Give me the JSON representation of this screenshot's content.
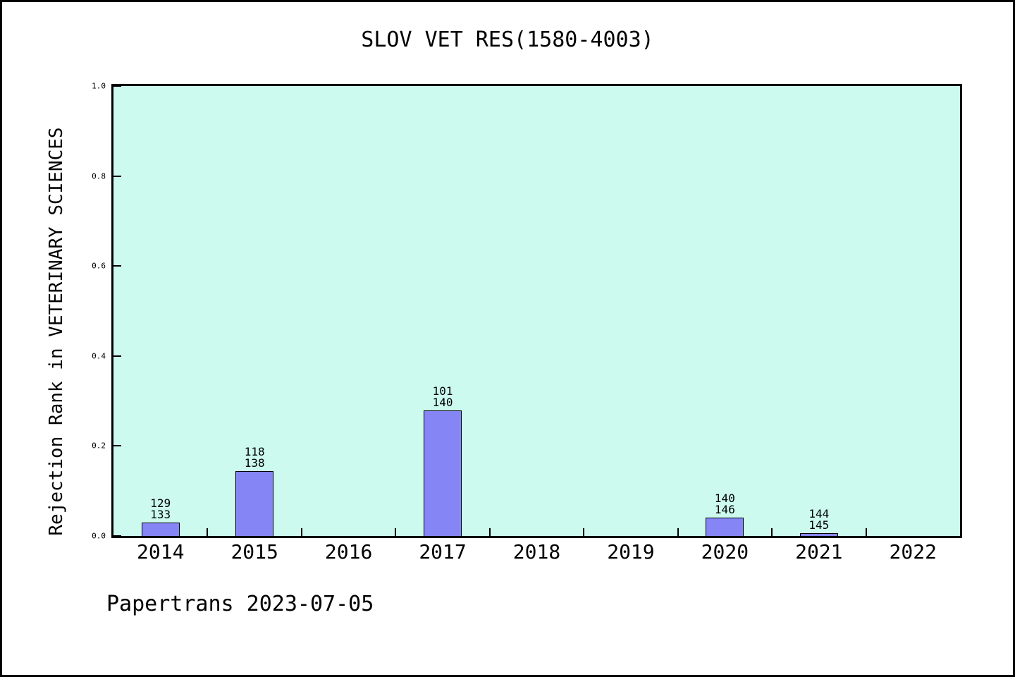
{
  "title": "SLOV VET RES(1580-4003)",
  "footer": "Papertrans 2023-07-05",
  "colors": {
    "bar_fill": "#8585f5",
    "bar_edge": "#000000",
    "plot_bg": "#ccfaee",
    "axis": "#000000",
    "page_bg": "#ffffff",
    "text": "#000000"
  },
  "chart_data": {
    "type": "bar",
    "title": "SLOV VET RES(1580-4003)",
    "ylabel": "Rejection Rank in VETERINARY SCIENCES",
    "xlabel": "",
    "categories": [
      "2014",
      "2015",
      "2016",
      "2017",
      "2018",
      "2019",
      "2020",
      "2021",
      "2022"
    ],
    "values": [
      0.0301,
      0.1449,
      0,
      0.2786,
      0,
      0,
      0.0411,
      0.0069,
      0
    ],
    "bar_labels": [
      [
        "129",
        "133"
      ],
      [
        "118",
        "138"
      ],
      null,
      [
        "101",
        "140"
      ],
      null,
      null,
      [
        "140",
        "146"
      ],
      [
        "144",
        "145"
      ],
      null
    ],
    "yticks": [
      "0.0",
      "0.2",
      "0.4",
      "0.6",
      "0.8",
      "1.0"
    ],
    "ylim": [
      0,
      1
    ],
    "grid": false,
    "legend_position": "none"
  }
}
